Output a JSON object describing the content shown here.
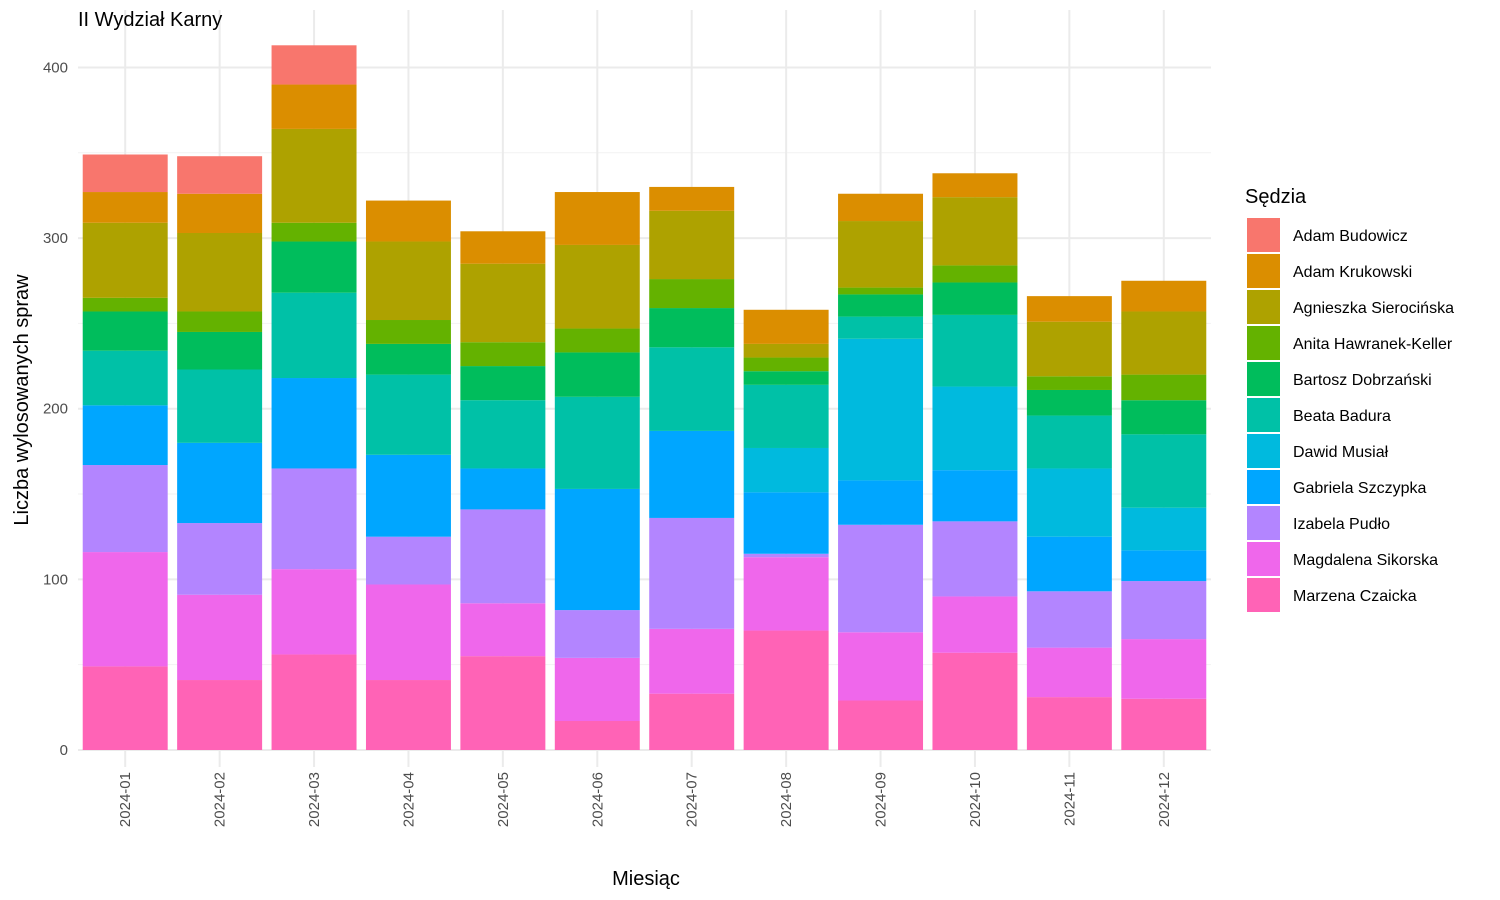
{
  "chart_data": {
    "type": "bar",
    "stacked": true,
    "title": "II Wydział Karny",
    "xlabel": "Miesiąc",
    "ylabel": "Liczba wylosowanych spraw",
    "ylim": [
      0,
      420
    ],
    "yticks": [
      0,
      100,
      200,
      300,
      400
    ],
    "grid": true,
    "legend_title": "Sędzia",
    "legend_position": "right",
    "categories": [
      "2024-01",
      "2024-02",
      "2024-03",
      "2024-04",
      "2024-05",
      "2024-06",
      "2024-07",
      "2024-08",
      "2024-09",
      "2024-10",
      "2024-11",
      "2024-12"
    ],
    "series": [
      {
        "name": "Adam Budowicz",
        "color": "#F8766D",
        "values": [
          22,
          22,
          23,
          0,
          0,
          0,
          0,
          0,
          0,
          0,
          0,
          0
        ]
      },
      {
        "name": "Adam Krukowski",
        "color": "#DB8E00",
        "values": [
          18,
          23,
          26,
          24,
          19,
          31,
          14,
          20,
          16,
          14,
          15,
          18
        ]
      },
      {
        "name": "Agnieszka Sierocińska",
        "color": "#AEA200",
        "values": [
          44,
          46,
          55,
          46,
          46,
          49,
          40,
          8,
          39,
          40,
          32,
          37
        ]
      },
      {
        "name": "Anita Hawranek-Keller",
        "color": "#64B200",
        "values": [
          8,
          12,
          11,
          14,
          14,
          14,
          17,
          8,
          4,
          10,
          8,
          15
        ]
      },
      {
        "name": "Bartosz Dobrzański",
        "color": "#00BD5C",
        "values": [
          23,
          22,
          30,
          18,
          20,
          26,
          23,
          8,
          13,
          19,
          15,
          20
        ]
      },
      {
        "name": "Beata Badura",
        "color": "#00C1A7",
        "values": [
          32,
          43,
          50,
          47,
          40,
          54,
          49,
          37,
          13,
          42,
          31,
          43
        ]
      },
      {
        "name": "Dawid Musiał",
        "color": "#00BADE",
        "values": [
          0,
          0,
          0,
          0,
          0,
          0,
          0,
          26,
          83,
          49,
          40,
          25
        ]
      },
      {
        "name": "Gabriela Szczypka",
        "color": "#00A6FF",
        "values": [
          35,
          47,
          53,
          48,
          24,
          71,
          51,
          36,
          26,
          30,
          32,
          18
        ]
      },
      {
        "name": "Izabela Pudło",
        "color": "#B385FF",
        "values": [
          51,
          42,
          59,
          28,
          55,
          28,
          65,
          2,
          63,
          44,
          33,
          34
        ]
      },
      {
        "name": "Magdalena Sikorska",
        "color": "#EF67EB",
        "values": [
          67,
          50,
          50,
          56,
          31,
          37,
          38,
          43,
          40,
          33,
          29,
          35
        ]
      },
      {
        "name": "Marzena Czaicka",
        "color": "#FF63B6",
        "values": [
          49,
          41,
          56,
          41,
          55,
          17,
          33,
          70,
          29,
          57,
          31,
          30
        ]
      }
    ]
  }
}
